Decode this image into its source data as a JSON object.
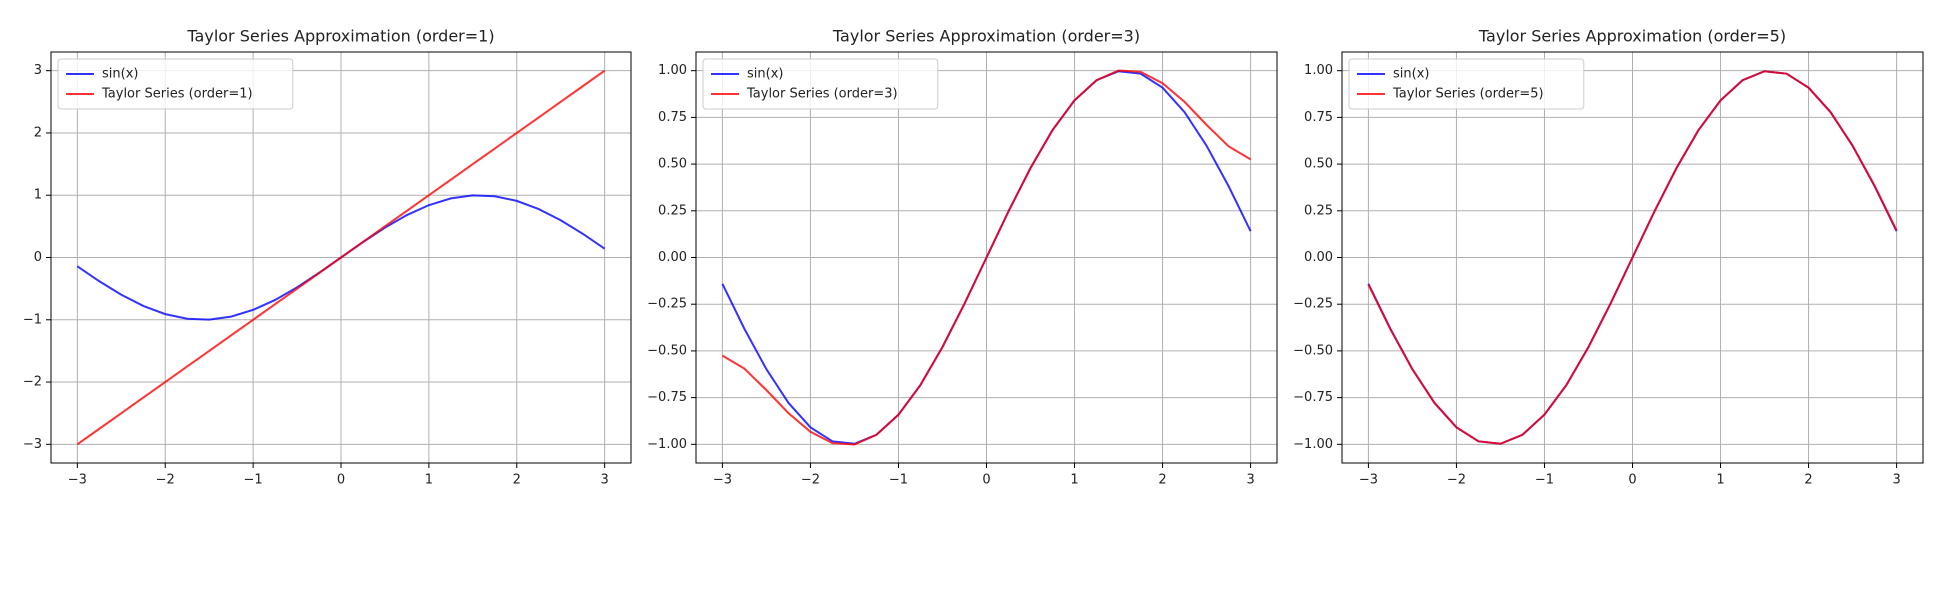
{
  "chart_data": [
    {
      "type": "line",
      "title": "Taylor Series Approximation (order=1)",
      "x": [
        -3,
        -2.75,
        -2.5,
        -2.25,
        -2,
        -1.75,
        -1.5,
        -1.25,
        -1,
        -0.75,
        -0.5,
        -0.25,
        0,
        0.25,
        0.5,
        0.75,
        1,
        1.25,
        1.5,
        1.75,
        2,
        2.25,
        2.5,
        2.75,
        3
      ],
      "series": [
        {
          "name": "sin(x)",
          "color": "#0000ff",
          "values": [
            -0.141,
            -0.382,
            -0.598,
            -0.778,
            -0.909,
            -0.984,
            -0.997,
            -0.949,
            -0.841,
            -0.682,
            -0.479,
            -0.247,
            0,
            0.247,
            0.479,
            0.682,
            0.841,
            0.949,
            0.997,
            0.984,
            0.909,
            0.778,
            0.598,
            0.382,
            0.141
          ]
        },
        {
          "name": "Taylor Series (order=1)",
          "color": "#ff0000",
          "values": [
            -3,
            -2.75,
            -2.5,
            -2.25,
            -2,
            -1.75,
            -1.5,
            -1.25,
            -1,
            -0.75,
            -0.5,
            -0.25,
            0,
            0.25,
            0.5,
            0.75,
            1,
            1.25,
            1.5,
            1.75,
            2,
            2.25,
            2.5,
            2.75,
            3
          ]
        }
      ],
      "xlim": [
        -3.3,
        3.3
      ],
      "xticks": [
        {
          "value": -3,
          "label": "−3"
        },
        {
          "value": -2,
          "label": "−2"
        },
        {
          "value": -1,
          "label": "−1"
        },
        0,
        1,
        2,
        3
      ],
      "ylim": [
        -3.3,
        3.3
      ],
      "yticks": [
        {
          "value": -3,
          "label": "−3"
        },
        {
          "value": -2,
          "label": "−2"
        },
        {
          "value": -1,
          "label": "−1"
        },
        0,
        1,
        2,
        3
      ],
      "grid": true,
      "legend": "upper left"
    },
    {
      "type": "line",
      "title": "Taylor Series Approximation (order=3)",
      "x": [
        -3,
        -2.75,
        -2.5,
        -2.25,
        -2,
        -1.75,
        -1.5,
        -1.25,
        -1,
        -0.75,
        -0.5,
        -0.25,
        0,
        0.25,
        0.5,
        0.75,
        1,
        1.25,
        1.5,
        1.75,
        2,
        2.25,
        2.5,
        2.75,
        3
      ],
      "series": [
        {
          "name": "sin(x)",
          "color": "#0000ff",
          "values": [
            -0.141,
            -0.382,
            -0.598,
            -0.778,
            -0.909,
            -0.984,
            -0.997,
            -0.949,
            -0.841,
            -0.682,
            -0.479,
            -0.247,
            0,
            0.247,
            0.479,
            0.682,
            0.841,
            0.949,
            0.997,
            0.984,
            0.909,
            0.778,
            0.598,
            0.382,
            0.141
          ]
        },
        {
          "name": "Taylor Series (order=3)",
          "color": "#ff0000",
          "values": [
            -0.525,
            -0.595,
            -0.71,
            -0.833,
            -0.933,
            -0.994,
            -1.001,
            -0.949,
            -0.842,
            -0.682,
            -0.479,
            -0.247,
            0,
            0.247,
            0.479,
            0.682,
            0.842,
            0.949,
            1.001,
            0.994,
            0.933,
            0.833,
            0.71,
            0.595,
            0.525
          ]
        }
      ],
      "xlim": [
        -3.3,
        3.3
      ],
      "xticks": [
        {
          "value": -3,
          "label": "−3"
        },
        {
          "value": -2,
          "label": "−2"
        },
        {
          "value": -1,
          "label": "−1"
        },
        0,
        1,
        2,
        3
      ],
      "ylim": [
        -1.1,
        1.1
      ],
      "yticks": [
        {
          "value": -1,
          "label": "−1.00"
        },
        {
          "value": -0.75,
          "label": "−0.75"
        },
        {
          "value": -0.5,
          "label": "−0.50"
        },
        {
          "value": -0.25,
          "label": "−0.25"
        },
        {
          "value": 0,
          "label": "0.00"
        },
        {
          "value": 0.25,
          "label": "0.25"
        },
        {
          "value": 0.5,
          "label": "0.50"
        },
        {
          "value": 0.75,
          "label": "0.75"
        },
        {
          "value": 1,
          "label": "1.00"
        }
      ],
      "grid": true,
      "legend": "upper left"
    },
    {
      "type": "line",
      "title": "Taylor Series Approximation (order=5)",
      "x": [
        -3,
        -2.75,
        -2.5,
        -2.25,
        -2,
        -1.75,
        -1.5,
        -1.25,
        -1,
        -0.75,
        -0.5,
        -0.25,
        0,
        0.25,
        0.5,
        0.75,
        1,
        1.25,
        1.5,
        1.75,
        2,
        2.25,
        2.5,
        2.75,
        3
      ],
      "series": [
        {
          "name": "sin(x)",
          "color": "#0000ff",
          "values": [
            -0.141,
            -0.382,
            -0.598,
            -0.778,
            -0.909,
            -0.984,
            -0.997,
            -0.949,
            -0.841,
            -0.682,
            -0.479,
            -0.247,
            0,
            0.247,
            0.479,
            0.682,
            0.841,
            0.949,
            0.997,
            0.984,
            0.909,
            0.778,
            0.598,
            0.382,
            0.141
          ]
        },
        {
          "name": "Taylor Series (order=5)",
          "color": "#ff0000",
          "values": [
            -0.145,
            -0.384,
            -0.599,
            -0.778,
            -0.909,
            -0.984,
            -0.997,
            -0.949,
            -0.841,
            -0.682,
            -0.479,
            -0.247,
            0,
            0.247,
            0.479,
            0.682,
            0.841,
            0.949,
            0.997,
            0.984,
            0.909,
            0.778,
            0.599,
            0.384,
            0.145
          ]
        }
      ],
      "xlim": [
        -3.3,
        3.3
      ],
      "xticks": [
        {
          "value": -3,
          "label": "−3"
        },
        {
          "value": -2,
          "label": "−2"
        },
        {
          "value": -1,
          "label": "−1"
        },
        0,
        1,
        2,
        3
      ],
      "ylim": [
        -1.1,
        1.1
      ],
      "yticks": [
        {
          "value": -1,
          "label": "−1.00"
        },
        {
          "value": -0.75,
          "label": "−0.75"
        },
        {
          "value": -0.5,
          "label": "−0.50"
        },
        {
          "value": -0.25,
          "label": "−0.25"
        },
        {
          "value": 0,
          "label": "0.00"
        },
        {
          "value": 0.25,
          "label": "0.25"
        },
        {
          "value": 0.5,
          "label": "0.50"
        },
        {
          "value": 0.75,
          "label": "0.75"
        },
        {
          "value": 1,
          "label": "1.00"
        }
      ],
      "grid": true,
      "legend": "upper left"
    }
  ]
}
